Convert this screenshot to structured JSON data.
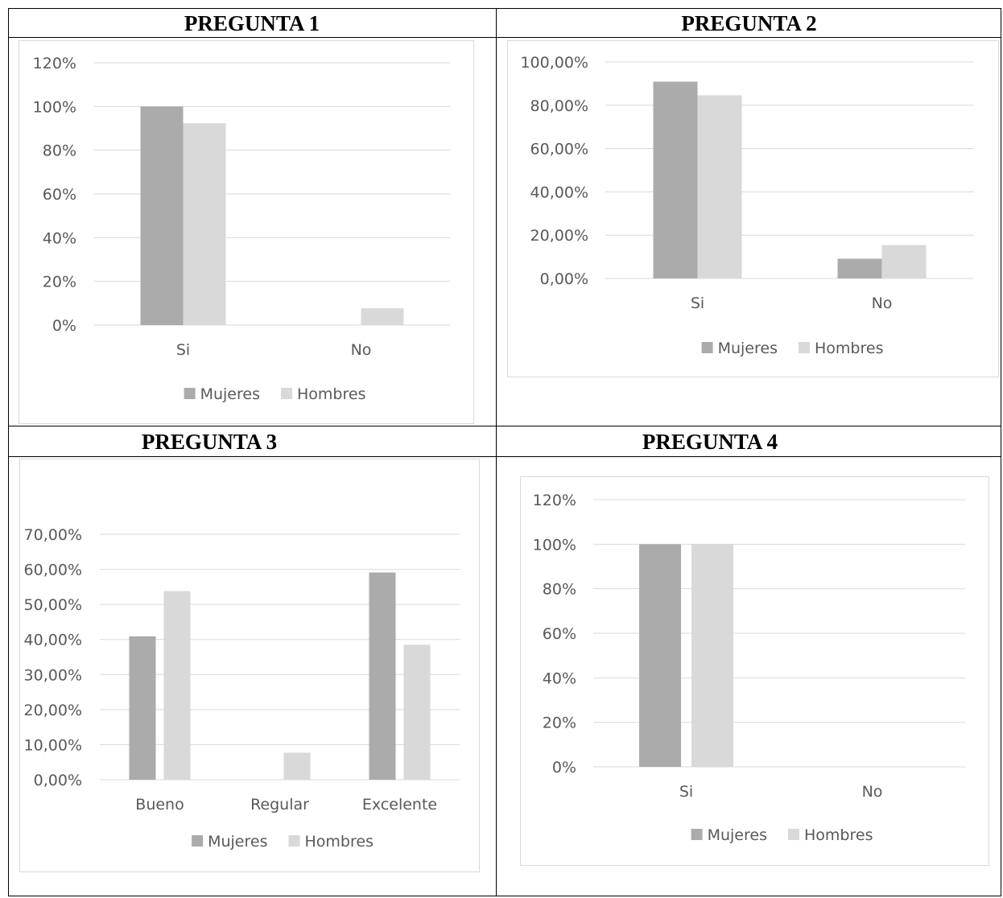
{
  "colors": {
    "mujeres": "#ababab",
    "hombres": "#d9d9d9",
    "grid": "#d9d9d9",
    "text": "#595959"
  },
  "chart_data": [
    {
      "title": "PREGUNTA 1",
      "type": "bar",
      "categories": [
        "Si",
        "No"
      ],
      "series": [
        {
          "name": "Mujeres",
          "values": [
            100,
            0
          ]
        },
        {
          "name": "Hombres",
          "values": [
            92.3,
            7.7
          ]
        }
      ],
      "ylim": [
        0,
        120
      ],
      "yticks": [
        0,
        20,
        40,
        60,
        80,
        100,
        120
      ],
      "ytick_labels": [
        "0%",
        "20%",
        "40%",
        "60%",
        "80%",
        "100%",
        "120%"
      ],
      "legend": "bottom",
      "grid": true
    },
    {
      "title": "PREGUNTA 2",
      "type": "bar",
      "categories": [
        "Si",
        "No"
      ],
      "series": [
        {
          "name": "Mujeres",
          "values": [
            90.9,
            9.1
          ]
        },
        {
          "name": "Hombres",
          "values": [
            84.6,
            15.4
          ]
        }
      ],
      "ylim": [
        0,
        100
      ],
      "yticks": [
        0,
        20,
        40,
        60,
        80,
        100
      ],
      "ytick_labels": [
        "0,00%",
        "20,00%",
        "40,00%",
        "60,00%",
        "80,00%",
        "100,00%"
      ],
      "legend": "bottom",
      "grid": true
    },
    {
      "title": "PREGUNTA 3",
      "type": "bar",
      "categories": [
        "Bueno",
        "Regular",
        "Excelente"
      ],
      "series": [
        {
          "name": "Mujeres",
          "values": [
            40.9,
            0,
            59.1
          ]
        },
        {
          "name": "Hombres",
          "values": [
            53.8,
            7.7,
            38.5
          ]
        }
      ],
      "ylim": [
        0,
        70
      ],
      "yticks": [
        0,
        10,
        20,
        30,
        40,
        50,
        60,
        70
      ],
      "ytick_labels": [
        "0,00%",
        "10,00%",
        "20,00%",
        "30,00%",
        "40,00%",
        "50,00%",
        "60,00%",
        "70,00%"
      ],
      "legend": "bottom",
      "grid": true
    },
    {
      "title": "PREGUNTA 4",
      "type": "bar",
      "categories": [
        "Si",
        "No"
      ],
      "series": [
        {
          "name": "Mujeres",
          "values": [
            100,
            0
          ]
        },
        {
          "name": "Hombres",
          "values": [
            100,
            0
          ]
        }
      ],
      "ylim": [
        0,
        120
      ],
      "yticks": [
        0,
        20,
        40,
        60,
        80,
        100,
        120
      ],
      "ytick_labels": [
        "0%",
        "20%",
        "40%",
        "60%",
        "80%",
        "100%",
        "120%"
      ],
      "legend": "bottom",
      "grid": true
    }
  ]
}
